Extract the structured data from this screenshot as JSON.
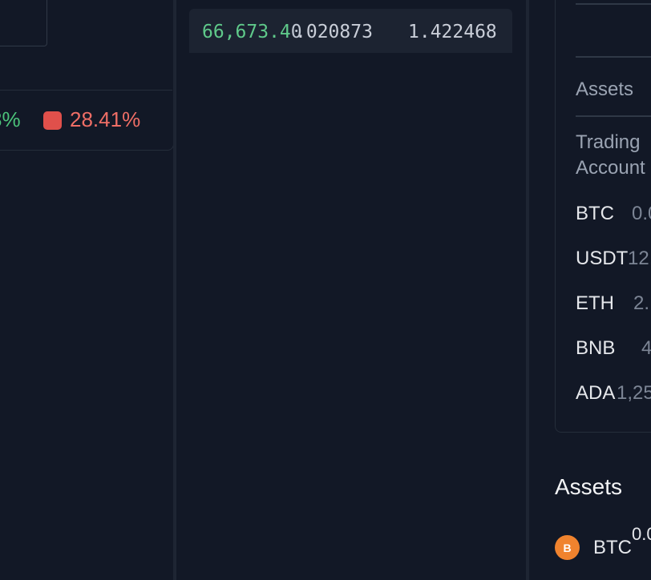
{
  "depth": {
    "buy_pct_partial": "8%",
    "sell_pct": "28.41%"
  },
  "trade": {
    "price_bright": "66,673.4",
    "price_dim": "0",
    "amount": ".020873",
    "total": "1.422468"
  },
  "account_panel": {
    "assets_label": "Assets",
    "trading_label_line1": "Trading",
    "trading_label_line2": "Account",
    "rows": [
      {
        "symbol": "BTC",
        "value": "0.0"
      },
      {
        "symbol": "USDT",
        "value": "12,"
      },
      {
        "symbol": "ETH",
        "value": "2."
      },
      {
        "symbol": "BNB",
        "value": "4"
      },
      {
        "symbol": "ADA",
        "value": "1,25"
      }
    ]
  },
  "assets_section": {
    "title": "Assets",
    "btc_icon_letter": "B",
    "btc_symbol": "BTC",
    "btc_balance": "0.0"
  },
  "colors": {
    "background": "#121826",
    "buy_green": "#4cc37a",
    "sell_red": "#e0504b",
    "btc_orange": "#f0832e"
  },
  "icons": [
    "sell-color-square-icon",
    "btc-coin-icon"
  ]
}
